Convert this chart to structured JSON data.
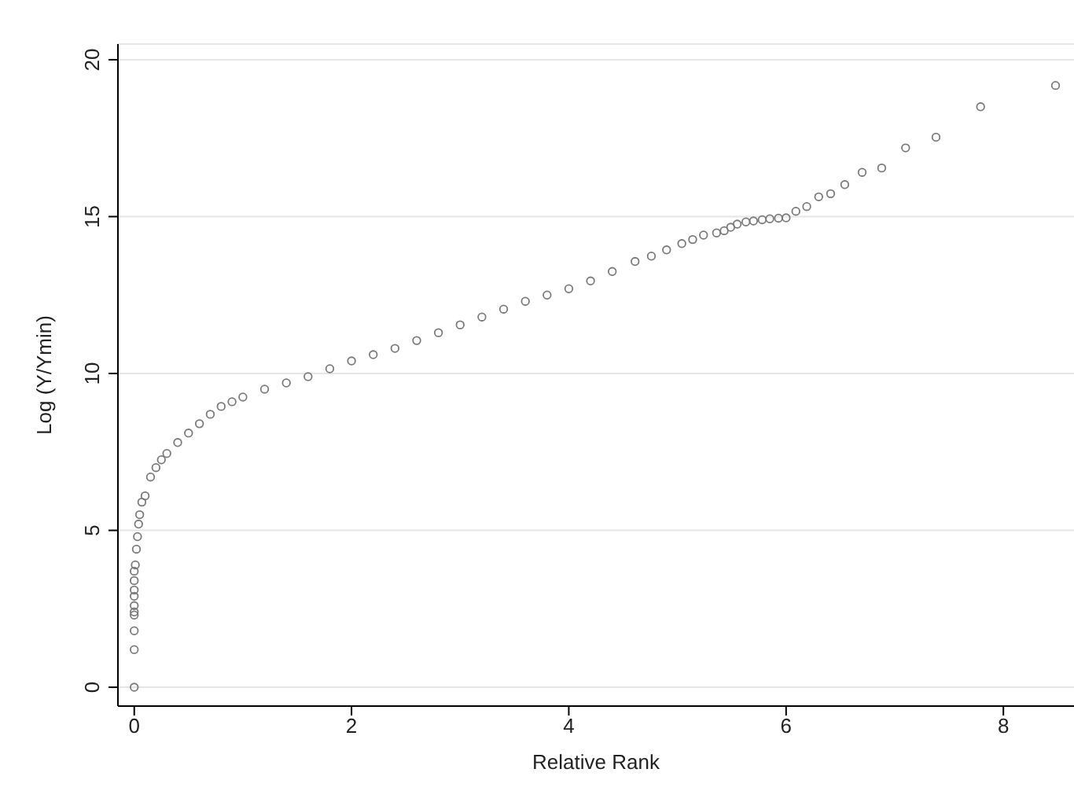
{
  "chart_data": {
    "type": "scatter",
    "xlabel": "Relative Rank",
    "ylabel": "Log (Y/Ymin)",
    "x": [
      0,
      0,
      0,
      0,
      0,
      0,
      0,
      0,
      0,
      0,
      0.01,
      0.02,
      0.03,
      0.04,
      0.05,
      0.07,
      0.1,
      0.15,
      0.2,
      0.25,
      0.3,
      0.4,
      0.5,
      0.6,
      0.7,
      0.8,
      0.9,
      1.0,
      1.2,
      1.4,
      1.6,
      1.8,
      2.0,
      2.2,
      2.4,
      2.6,
      2.8,
      3.0,
      3.2,
      3.4,
      3.6,
      3.8,
      4.0,
      4.2,
      4.4,
      4.61,
      4.76,
      4.9,
      5.04,
      5.14,
      5.24,
      5.36,
      5.43,
      5.49,
      5.55,
      5.63,
      5.7,
      5.78,
      5.85,
      5.93,
      6.0,
      6.09,
      6.19,
      6.3,
      6.41,
      6.54,
      6.7,
      6.88,
      7.1,
      7.38,
      7.79,
      8.48
    ],
    "values": [
      0,
      1.2,
      1.8,
      2.3,
      2.4,
      2.6,
      2.9,
      3.1,
      3.4,
      3.7,
      3.9,
      4.4,
      4.8,
      5.2,
      5.5,
      5.9,
      6.1,
      6.7,
      7.0,
      7.25,
      7.45,
      7.8,
      8.1,
      8.4,
      8.7,
      8.95,
      9.1,
      9.25,
      9.5,
      9.7,
      9.9,
      10.15,
      10.4,
      10.6,
      10.8,
      11.05,
      11.3,
      11.55,
      11.8,
      12.05,
      12.3,
      12.5,
      12.7,
      12.95,
      13.25,
      13.57,
      13.74,
      13.94,
      14.14,
      14.27,
      14.41,
      14.48,
      14.55,
      14.66,
      14.76,
      14.83,
      14.86,
      14.9,
      14.93,
      14.95,
      14.96,
      15.17,
      15.32,
      15.63,
      15.73,
      16.02,
      16.41,
      16.55,
      17.19,
      17.53,
      18.5,
      19.18
    ],
    "color": "#7a7a7a",
    "marker": "circle",
    "xlim": [
      -0.15,
      8.65
    ],
    "xticks": [
      0,
      2,
      4,
      6,
      8
    ],
    "ylim": [
      -0.6,
      20.5
    ],
    "yticks": [
      0,
      5,
      10,
      15,
      20
    ],
    "grid": "y"
  }
}
